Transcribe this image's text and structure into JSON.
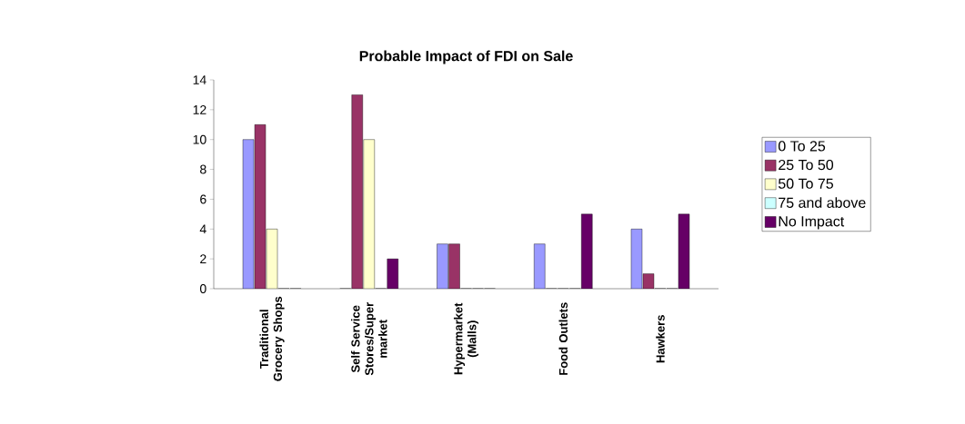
{
  "chart_data": {
    "type": "bar",
    "title": "Probable Impact of FDI on Sale",
    "categories": [
      "Traditional Grocery Shops",
      "Self Service Stores/Super market",
      "Hypermarket (Malls)",
      "Food Outlets",
      "Hawkers"
    ],
    "series": [
      {
        "name": "0 To 25",
        "color": "#9999ff",
        "values": [
          10,
          0,
          3,
          3,
          4
        ]
      },
      {
        "name": "25 To 50",
        "color": "#993366",
        "values": [
          11,
          13,
          3,
          0,
          1
        ]
      },
      {
        "name": "50 To 75",
        "color": "#ffffcc",
        "values": [
          4,
          10,
          0,
          0,
          0
        ]
      },
      {
        "name": "75 and above",
        "color": "#ccffff",
        "values": [
          0,
          0,
          0,
          0,
          0
        ]
      },
      {
        "name": "No Impact",
        "color": "#660066",
        "values": [
          0,
          2,
          0,
          5,
          5
        ]
      }
    ],
    "ylim": [
      0,
      14
    ],
    "yticks": [
      0,
      2,
      4,
      6,
      8,
      10,
      12,
      14
    ],
    "legend": "right"
  }
}
